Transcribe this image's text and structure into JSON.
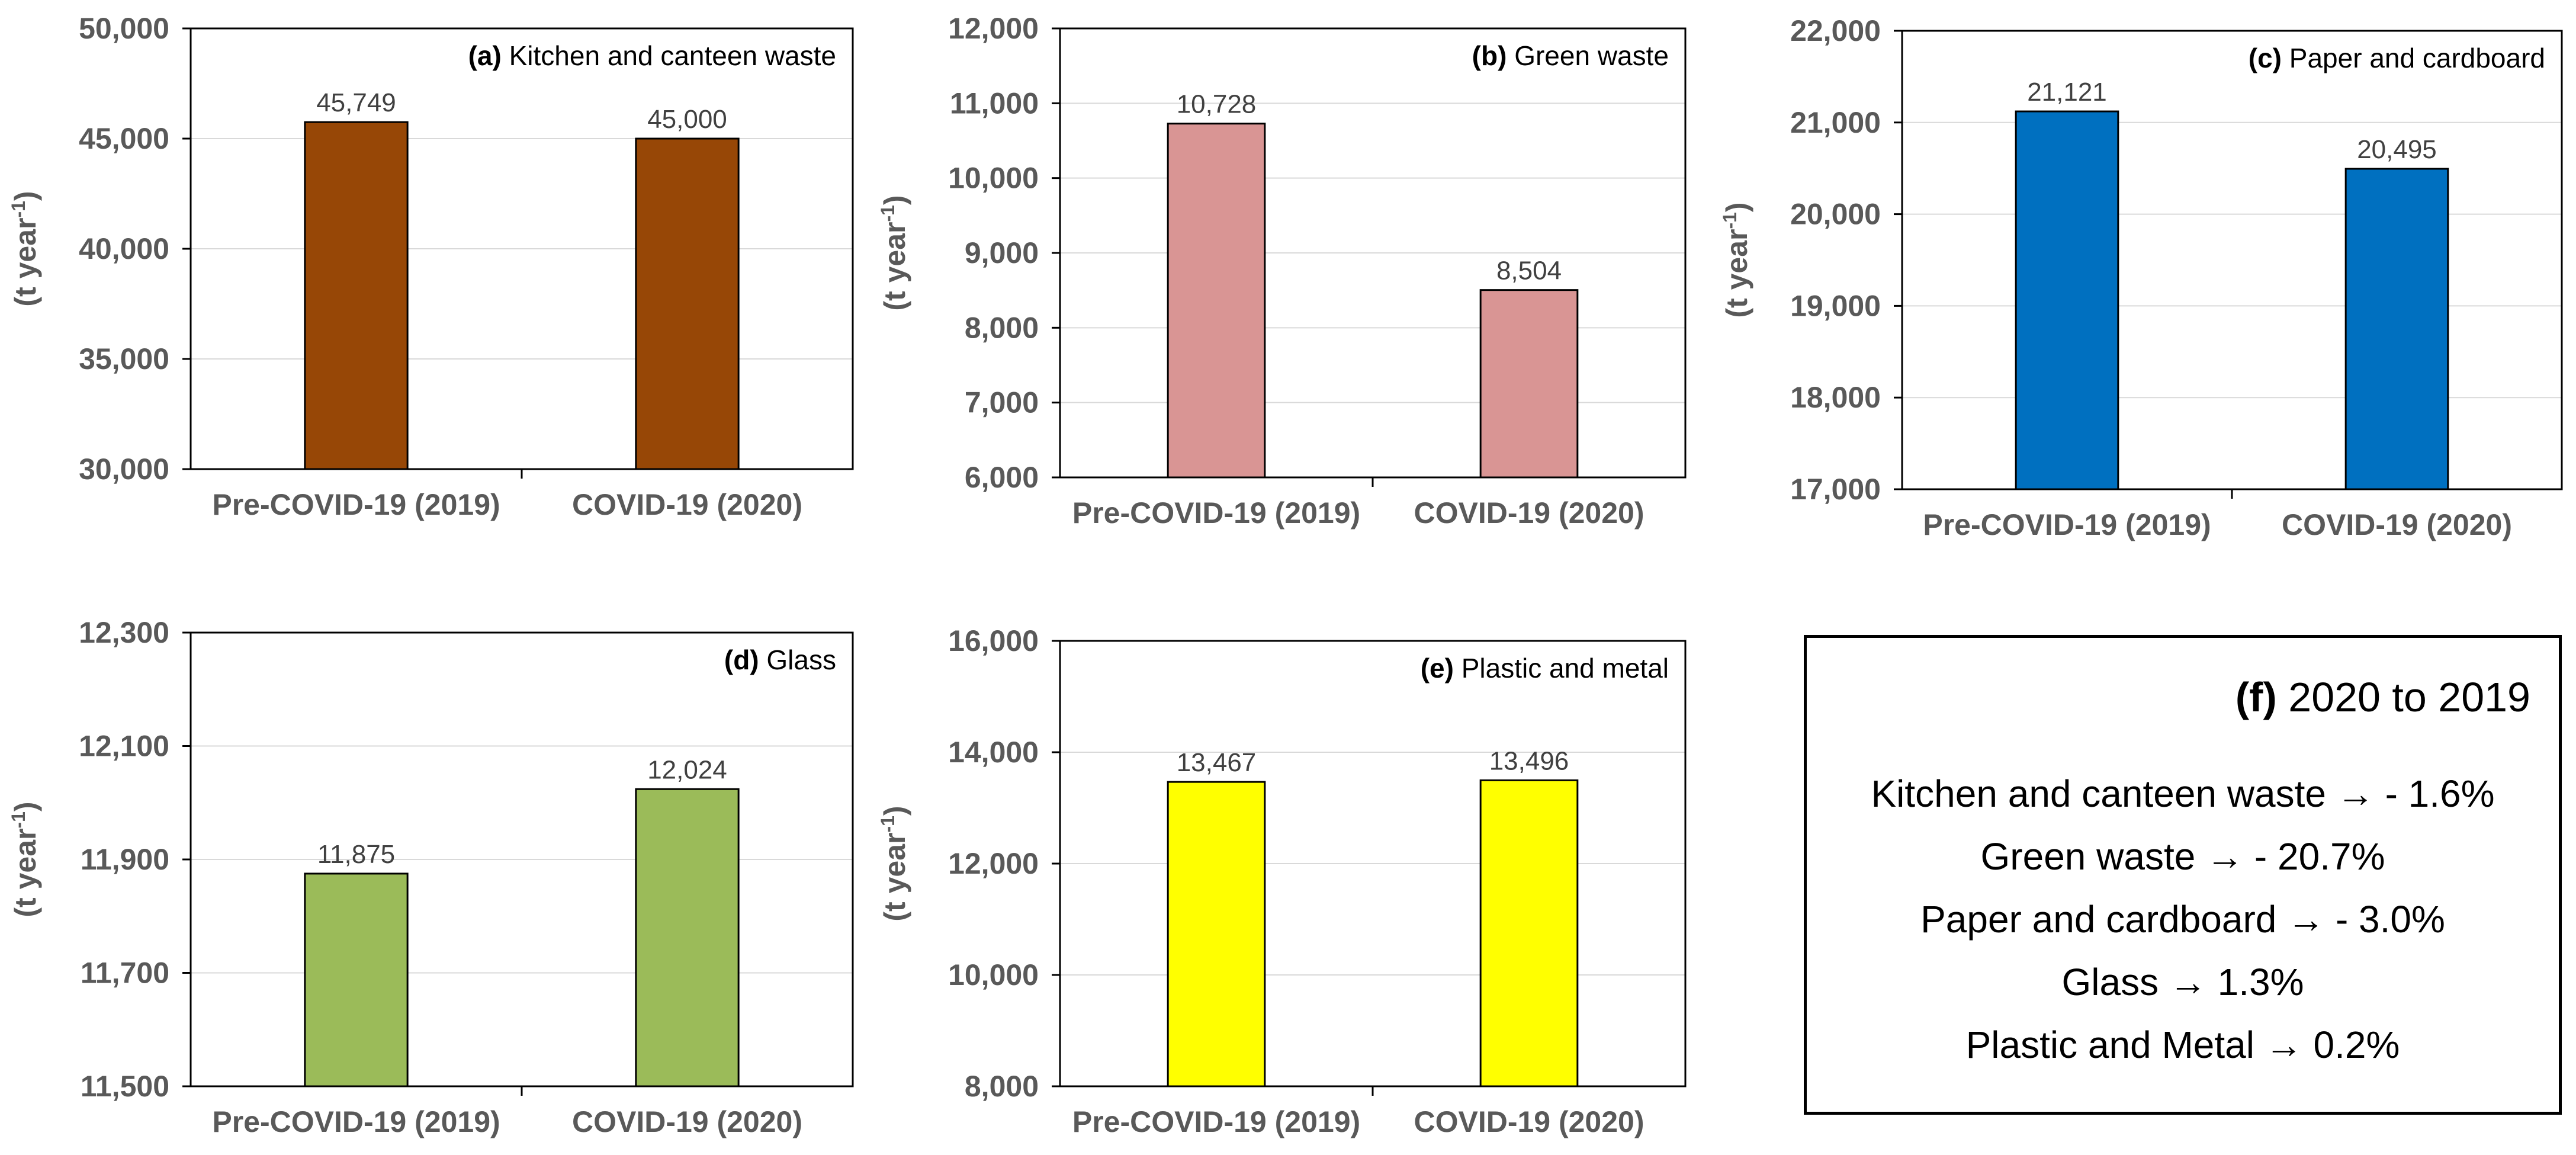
{
  "chart_data": [
    {
      "type": "bar",
      "panel": "(a)",
      "title": "Kitchen and canteen waste",
      "ylabel": "(t year",
      "ylabel_sup": "-1",
      "ylabel_end": ")",
      "categories": [
        "Pre-COVID-19 (2019)",
        "COVID-19 (2020)"
      ],
      "values": [
        45749,
        45000
      ],
      "value_labels": [
        "45,749",
        "45,000"
      ],
      "ylim": [
        30000,
        50000
      ],
      "yticks": [
        30000,
        35000,
        40000,
        45000,
        50000
      ],
      "ytick_labels": [
        "30,000",
        "35,000",
        "40,000",
        "45,000",
        "50,000"
      ],
      "color": "#974706",
      "grid": true
    },
    {
      "type": "bar",
      "panel": "(b)",
      "title": "Green waste",
      "ylabel": "(t year",
      "ylabel_sup": "-1",
      "ylabel_end": ")",
      "categories": [
        "Pre-COVID-19 (2019)",
        "COVID-19 (2020)"
      ],
      "values": [
        10728,
        8504
      ],
      "value_labels": [
        "10,728",
        "8,504"
      ],
      "ylim": [
        6000,
        12000
      ],
      "yticks": [
        6000,
        7000,
        8000,
        9000,
        10000,
        11000,
        12000
      ],
      "ytick_labels": [
        "6,000",
        "7,000",
        "8,000",
        "9,000",
        "10,000",
        "11,000",
        "12,000"
      ],
      "color": "#D99594",
      "grid": true
    },
    {
      "type": "bar",
      "panel": "(c)",
      "title": "Paper and cardboard",
      "ylabel": "(t year",
      "ylabel_sup": "-1",
      "ylabel_end": ")",
      "categories": [
        "Pre-COVID-19 (2019)",
        "COVID-19 (2020)"
      ],
      "values": [
        21121,
        20495
      ],
      "value_labels": [
        "21,121",
        "20,495"
      ],
      "ylim": [
        17000,
        22000
      ],
      "yticks": [
        17000,
        18000,
        19000,
        20000,
        21000,
        22000
      ],
      "ytick_labels": [
        "17,000",
        "18,000",
        "19,000",
        "20,000",
        "21,000",
        "22,000"
      ],
      "color": "#0070C0",
      "grid": true
    },
    {
      "type": "bar",
      "panel": "(d)",
      "title": "Glass",
      "ylabel": "(t year",
      "ylabel_sup": "-1",
      "ylabel_end": ")",
      "categories": [
        "Pre-COVID-19 (2019)",
        "COVID-19 (2020)"
      ],
      "values": [
        11875,
        12024
      ],
      "value_labels": [
        "11,875",
        "12,024"
      ],
      "ylim": [
        11500,
        12300
      ],
      "yticks": [
        11500,
        11700,
        11900,
        12100,
        12300
      ],
      "ytick_labels": [
        "11,500",
        "11,700",
        "11,900",
        "12,100",
        "12,300"
      ],
      "color": "#9BBB59",
      "grid": true
    },
    {
      "type": "bar",
      "panel": "(e)",
      "title": "Plastic and metal",
      "ylabel": "(t year",
      "ylabel_sup": "-1",
      "ylabel_end": ")",
      "categories": [
        "Pre-COVID-19 (2019)",
        "COVID-19 (2020)"
      ],
      "values": [
        13467,
        13496
      ],
      "value_labels": [
        "13,467",
        "13,496"
      ],
      "ylim": [
        8000,
        16000
      ],
      "yticks": [
        8000,
        10000,
        12000,
        14000,
        16000
      ],
      "ytick_labels": [
        "8,000",
        "10,000",
        "12,000",
        "14,000",
        "16,000"
      ],
      "color": "#FFFF00",
      "grid": true
    }
  ],
  "summary": {
    "tag": "(f)",
    "title": "2020 to 2019",
    "lines": [
      "Kitchen and canteen waste → - 1.6%",
      "Green waste → - 20.7%",
      "Paper and cardboard → - 3.0%",
      "Glass → 1.3%",
      "Plastic and Metal → 0.2%"
    ]
  }
}
